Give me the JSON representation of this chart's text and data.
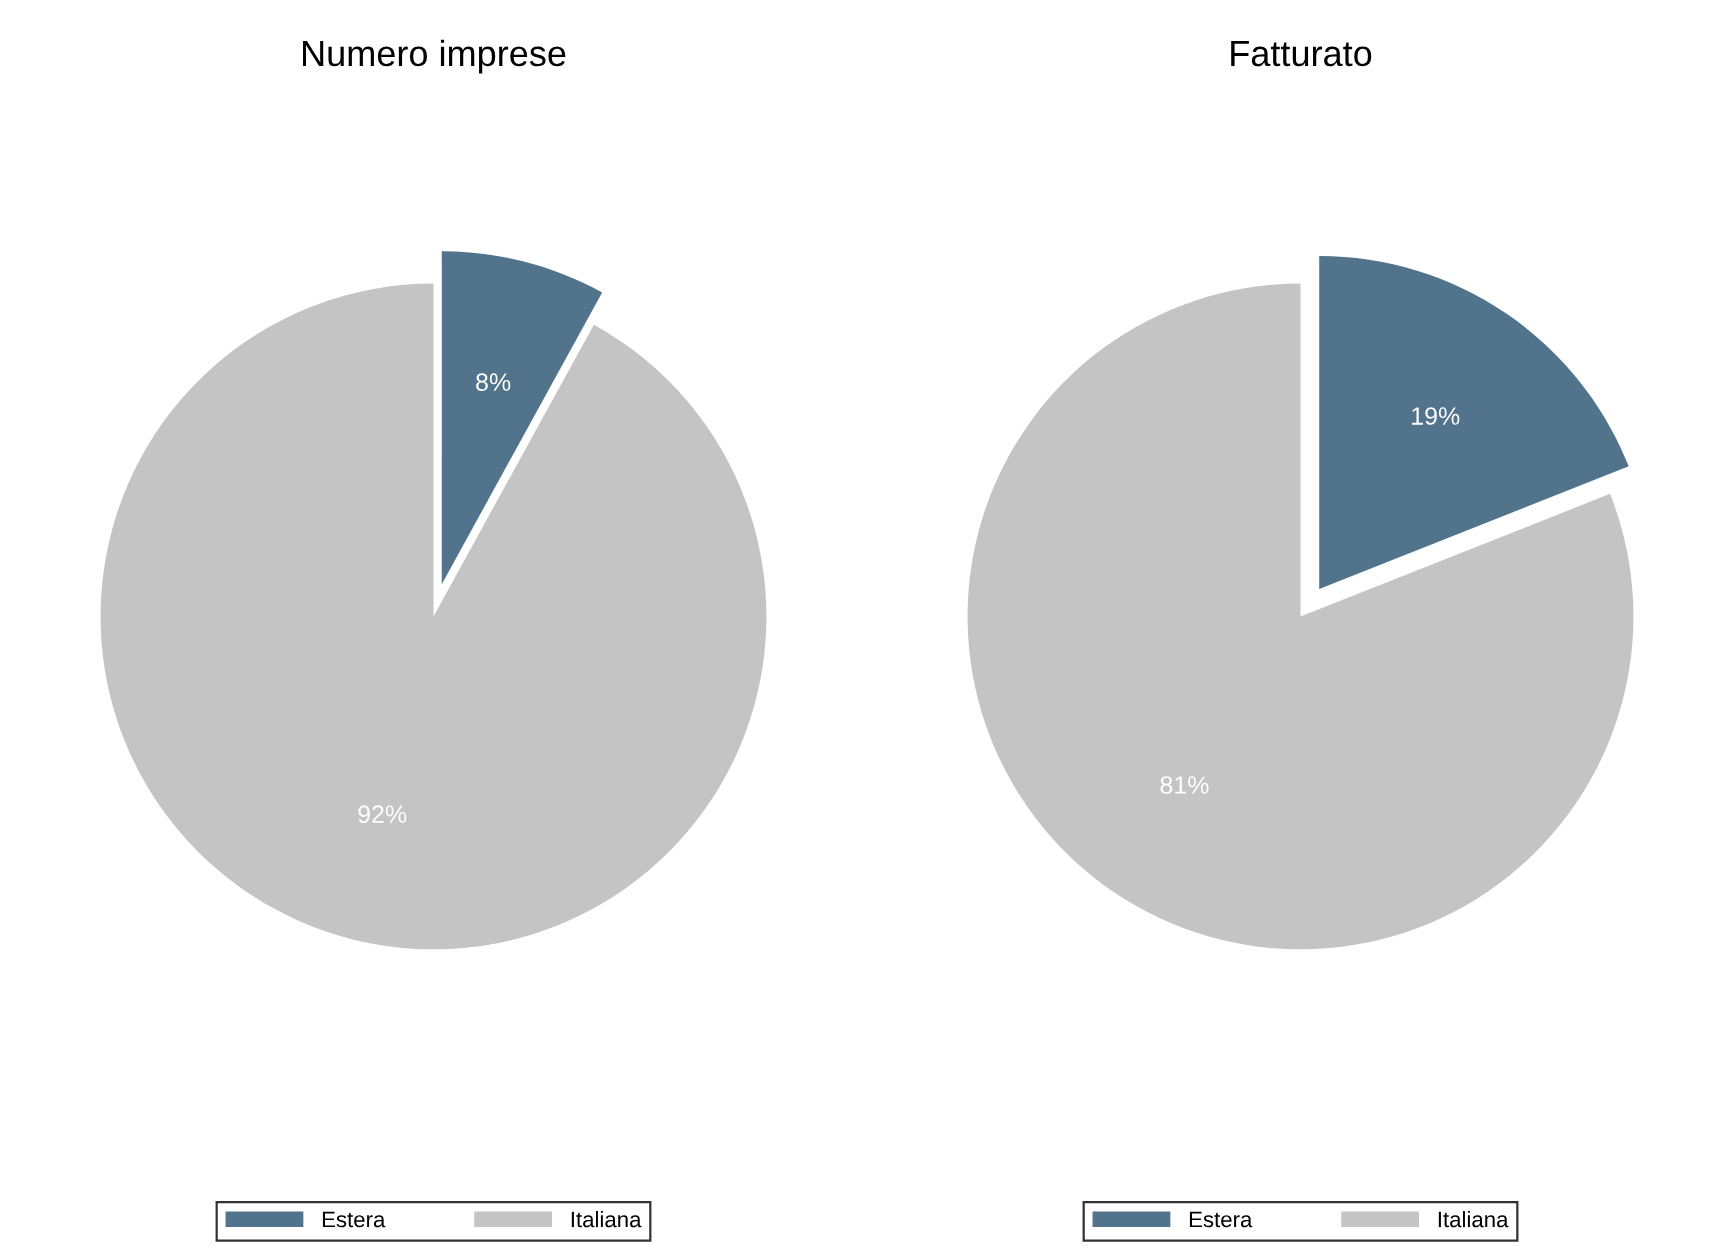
{
  "chart_data": [
    {
      "type": "pie",
      "title": "Numero imprese",
      "categories": [
        "Estera",
        "Italiana"
      ],
      "values": [
        8,
        92
      ],
      "colors": [
        "#51738b",
        "#c4c4c4"
      ],
      "value_labels": [
        "8%",
        "92%"
      ],
      "legend": "bottom"
    },
    {
      "type": "pie",
      "title": "Fatturato",
      "categories": [
        "Estera",
        "Italiana"
      ],
      "values": [
        19,
        81
      ],
      "colors": [
        "#51738b",
        "#c4c4c4"
      ],
      "value_labels": [
        "19%",
        "81%"
      ],
      "legend": "bottom"
    }
  ]
}
